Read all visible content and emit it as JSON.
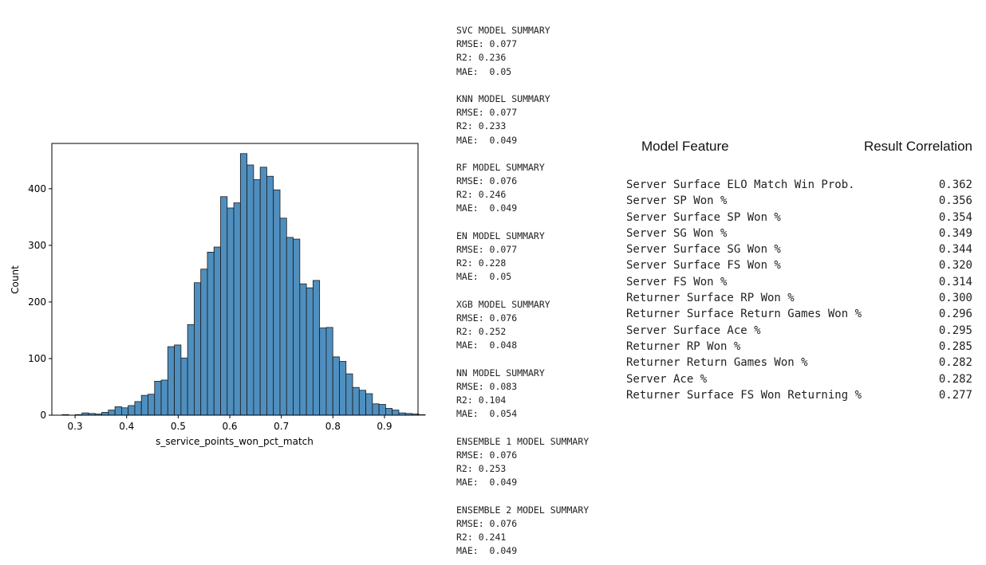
{
  "chart_data": {
    "type": "bar",
    "xlabel": "s_service_points_won_pct_match",
    "ylabel": "Count",
    "xlim": [
      0.255,
      0.965
    ],
    "ylim": [
      0,
      480
    ],
    "xticks": [
      0.3,
      0.4,
      0.5,
      0.6,
      0.7,
      0.8,
      0.9
    ],
    "yticks": [
      0,
      100,
      200,
      300,
      400
    ],
    "bar_color": "#4f8fbf",
    "edge_color": "#1a1a1a",
    "bin_width": 0.0128,
    "bin_start": 0.275,
    "values": [
      1,
      0,
      1,
      4,
      3,
      2,
      5,
      9,
      15,
      13,
      17,
      24,
      35,
      37,
      60,
      62,
      121,
      124,
      101,
      160,
      234,
      258,
      288,
      297,
      386,
      366,
      375,
      462,
      442,
      416,
      438,
      422,
      398,
      348,
      314,
      311,
      232,
      225,
      238,
      154,
      155,
      103,
      95,
      73,
      49,
      44,
      38,
      20,
      19,
      12,
      9,
      4,
      3,
      2,
      1
    ]
  },
  "summaries": [
    {
      "title": "SVC MODEL SUMMARY",
      "rmse": "RMSE: 0.077",
      "r2": "R2: 0.236",
      "mae": "MAE:  0.05"
    },
    {
      "title": "KNN MODEL SUMMARY",
      "rmse": "RMSE: 0.077",
      "r2": "R2: 0.233",
      "mae": "MAE:  0.049"
    },
    {
      "title": "RF MODEL SUMMARY",
      "rmse": "RMSE: 0.076",
      "r2": "R2: 0.246",
      "mae": "MAE:  0.049"
    },
    {
      "title": "EN MODEL SUMMARY",
      "rmse": "RMSE: 0.077",
      "r2": "R2: 0.228",
      "mae": "MAE:  0.05"
    },
    {
      "title": "XGB MODEL SUMMARY",
      "rmse": "RMSE: 0.076",
      "r2": "R2: 0.252",
      "mae": "MAE:  0.048"
    },
    {
      "title": "NN MODEL SUMMARY",
      "rmse": "RMSE: 0.083",
      "r2": "R2: 0.104",
      "mae": "MAE:  0.054"
    },
    {
      "title": "ENSEMBLE 1 MODEL SUMMARY",
      "rmse": "RMSE: 0.076",
      "r2": "R2: 0.253",
      "mae": "MAE:  0.049"
    },
    {
      "title": "ENSEMBLE 2 MODEL SUMMARY",
      "rmse": "RMSE: 0.076",
      "r2": "R2: 0.241",
      "mae": "MAE:  0.049"
    }
  ],
  "correlations": {
    "feature_header": "Model Feature",
    "result_header": "Result Correlation",
    "rows": [
      {
        "feature": "Server Surface ELO Match Win Prob.",
        "value": "0.362"
      },
      {
        "feature": "Server SP Won %",
        "value": "0.356"
      },
      {
        "feature": "Server Surface SP Won %",
        "value": "0.354"
      },
      {
        "feature": "Server SG Won %",
        "value": "0.349"
      },
      {
        "feature": "Server Surface SG Won %",
        "value": "0.344"
      },
      {
        "feature": "Server Surface FS Won %",
        "value": "0.320"
      },
      {
        "feature": "Server FS Won %",
        "value": "0.314"
      },
      {
        "feature": "Returner Surface RP Won %",
        "value": "0.300"
      },
      {
        "feature": "Returner Surface Return Games Won %",
        "value": "0.296"
      },
      {
        "feature": "Server Surface Ace %",
        "value": "0.295"
      },
      {
        "feature": "Returner RP Won %",
        "value": "0.285"
      },
      {
        "feature": "Returner Return Games Won %",
        "value": "0.282"
      },
      {
        "feature": "Server Ace %",
        "value": "0.282"
      },
      {
        "feature": "Returner Surface FS Won Returning %",
        "value": "0.277"
      }
    ]
  }
}
